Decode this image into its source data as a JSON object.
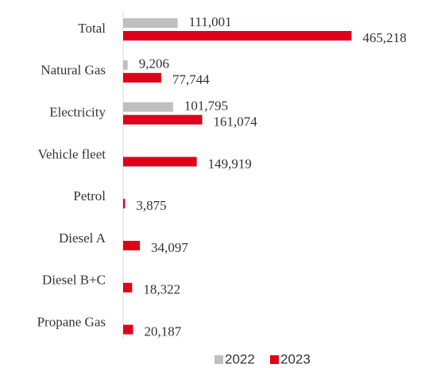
{
  "chart_data": {
    "type": "hbar",
    "categories": [
      "Total",
      "Natural Gas",
      "Electricity",
      "Vehicle fleet",
      "Petrol",
      "Diesel A",
      "Diesel B+C",
      "Propane Gas"
    ],
    "series": [
      {
        "name": "2022",
        "color": "#bfbfbf",
        "values": [
          111001,
          9206,
          101795,
          null,
          null,
          null,
          null,
          null
        ],
        "value_labels": [
          "111,001",
          "9,206",
          "101,795",
          null,
          null,
          null,
          null,
          null
        ]
      },
      {
        "name": "2023",
        "color": "#e0001b",
        "values": [
          465218,
          77744,
          161074,
          149919,
          3875,
          34097,
          18322,
          20187
        ],
        "value_labels": [
          "465,218",
          "77,744",
          "161,074",
          "149,919",
          "3,875",
          "34,097",
          "18,322",
          "20,187"
        ]
      }
    ],
    "xlim": [
      0,
      500000
    ]
  }
}
